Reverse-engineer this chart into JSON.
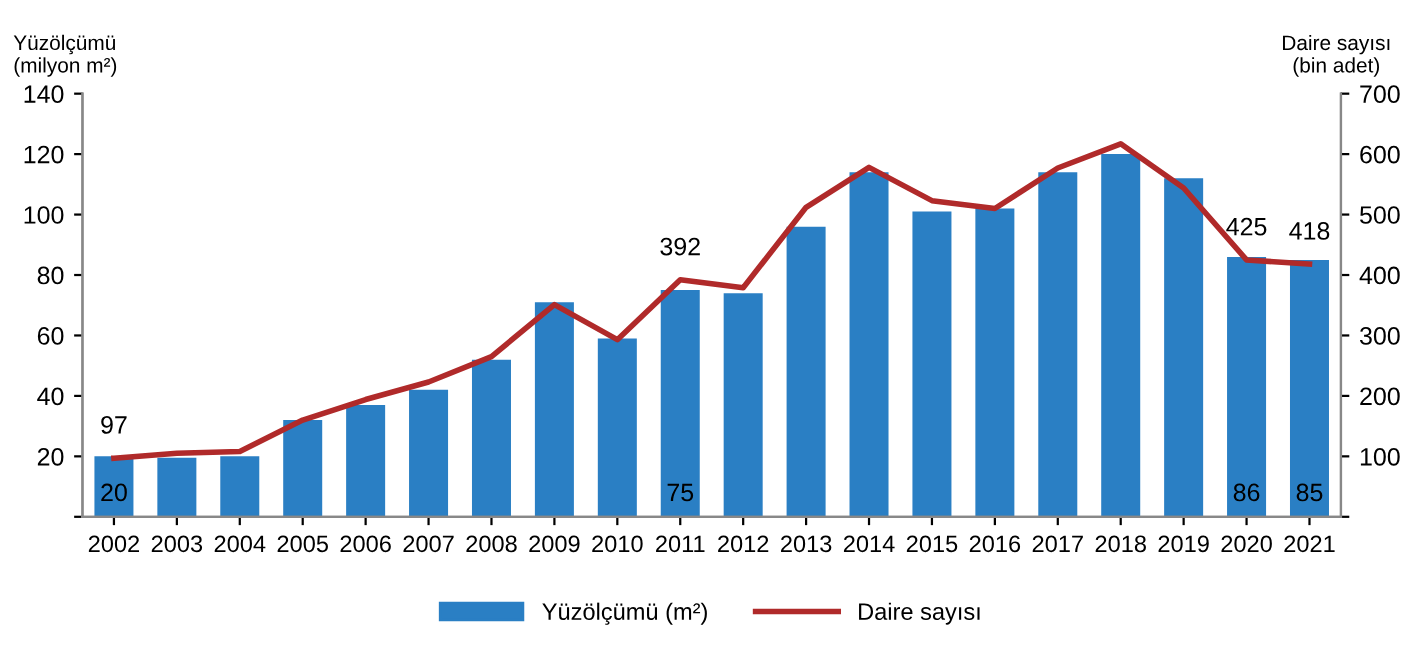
{
  "chart_data": {
    "type": "bar",
    "ylabel": "Yüzölçümü\n(milyon m²)",
    "y2label": "Daire sayısı\n(bin adet)",
    "categories": [
      "2002",
      "2003",
      "2004",
      "2005",
      "2006",
      "2007",
      "2008",
      "2009",
      "2010",
      "2011",
      "2012",
      "2013",
      "2014",
      "2015",
      "2016",
      "2017",
      "2018",
      "2019",
      "2020",
      "2021"
    ],
    "series": [
      {
        "name": "Yüzölçümü (m²)",
        "color": "#2a7fc4",
        "values": [
          20,
          19.5,
          20,
          32,
          37,
          42,
          52,
          71,
          59,
          75,
          74,
          96,
          114,
          101,
          102,
          114,
          120,
          112,
          86,
          85
        ],
        "value_labels": [
          "20",
          null,
          null,
          null,
          null,
          null,
          null,
          null,
          null,
          "75",
          null,
          null,
          null,
          null,
          null,
          null,
          null,
          null,
          "86",
          "85"
        ]
      },
      {
        "name": "Daire sayısı",
        "type": "line",
        "axis": "y2",
        "color": "#b02a2a",
        "values": [
          97,
          105,
          108,
          160,
          194,
          223,
          265,
          351,
          293,
          392,
          379,
          512,
          578,
          523,
          510,
          577,
          617,
          544,
          425,
          418
        ],
        "value_labels": [
          "97",
          null,
          null,
          null,
          null,
          null,
          null,
          null,
          null,
          "392",
          null,
          null,
          null,
          null,
          null,
          null,
          null,
          null,
          "425",
          "418"
        ]
      }
    ],
    "ylim": [
      0,
      140
    ],
    "yticks": [
      {
        "value": 0,
        "label": null
      },
      20,
      40,
      60,
      80,
      100,
      120,
      140
    ],
    "y2lim": [
      0,
      700
    ],
    "y2ticks": [
      {
        "value": 0,
        "label": null
      },
      100,
      200,
      300,
      400,
      500,
      600,
      700
    ],
    "grid": false,
    "legend": "bottom",
    "marker": "none",
    "line_style": "solid"
  }
}
